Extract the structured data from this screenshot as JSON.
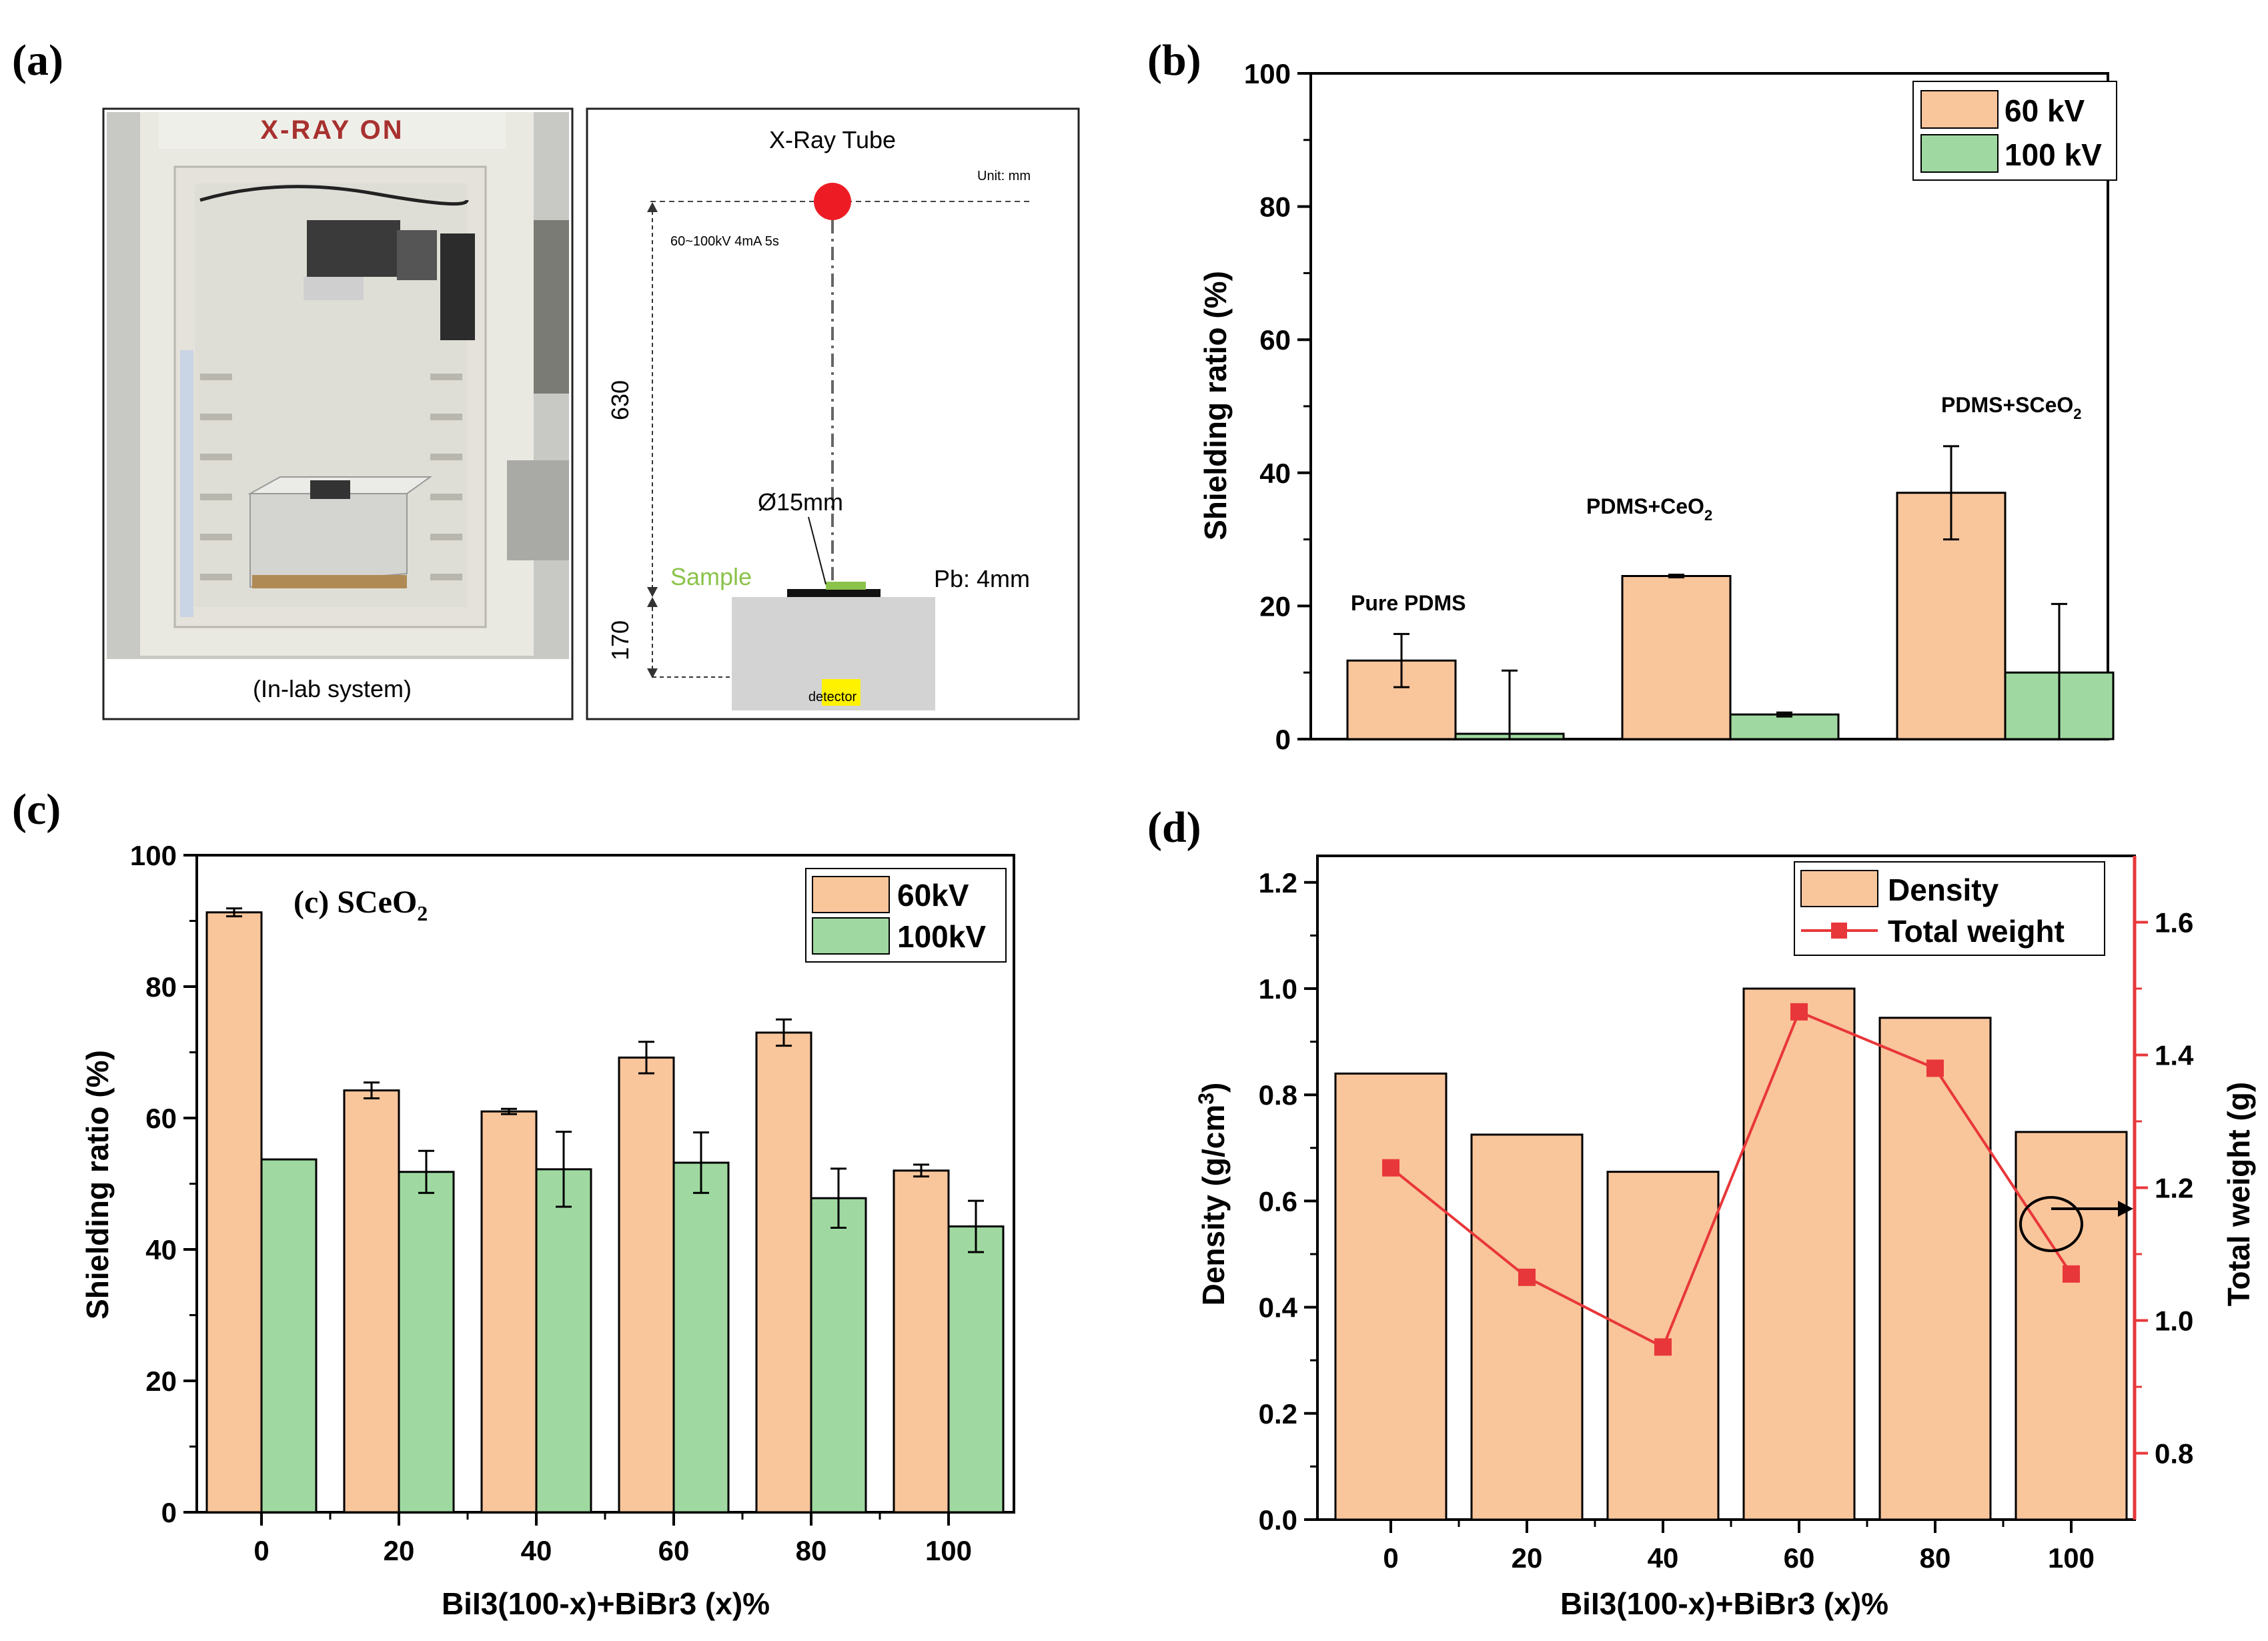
{
  "colors": {
    "orange": "#F9C59B",
    "green": "#9FD9A1",
    "red": "#E8373A",
    "laser": "#ED1C24",
    "sample": "#8BC34A",
    "detector": "#FFF200",
    "gray": "#D3D3D3"
  },
  "panel_a": {
    "label": "(a)",
    "photo_sign": "X-RAY ON",
    "photo_caption": "(In-lab system)",
    "tube_label": "X-Ray Tube",
    "unit": "Unit: mm",
    "source_params": "60~100kV 4mA 5s",
    "dist_top": "630",
    "dist_bottom": "170",
    "diameter": "Ø15mm",
    "sample": "Sample",
    "shield": "Pb: 4mm",
    "detector": "detector"
  },
  "chart_data": [
    {
      "id": "b",
      "label": "(b)",
      "type": "bar",
      "title": "",
      "ylabel": "Shielding ratio (%)",
      "ylim": [
        0,
        100
      ],
      "yticks": [
        0,
        20,
        40,
        60,
        80,
        100
      ],
      "categories": [
        "Pure PDMS",
        "PDMS+CeO2",
        "PDMS+SCeO2"
      ],
      "category_labels": [
        {
          "main": "Pure PDMS",
          "sub": ""
        },
        {
          "main": "PDMS+CeO",
          "sub": "2"
        },
        {
          "main": "PDMS+SCeO",
          "sub": "2"
        }
      ],
      "series": [
        {
          "name": "60 kV",
          "color": "#F9C59B",
          "values": [
            11.8,
            24.5,
            37.0
          ],
          "errors": [
            4.0,
            0.2,
            7.0
          ]
        },
        {
          "name": "100 kV",
          "color": "#9FD9A1",
          "values": [
            0.8,
            3.7,
            10.0
          ],
          "errors": [
            9.5,
            0.3,
            10.3
          ]
        }
      ],
      "legend_position": "top-right"
    },
    {
      "id": "c",
      "label": "(c)",
      "type": "bar",
      "annotation": {
        "main": "(c) SCeO",
        "sub": "2"
      },
      "xlabel": "BiI3(100-x)+BiBr3 (x)%",
      "ylabel": "Shielding ratio (%)",
      "ylim": [
        0,
        100
      ],
      "yticks": [
        0,
        20,
        40,
        60,
        80,
        100
      ],
      "categories": [
        "0",
        "20",
        "40",
        "60",
        "80",
        "100"
      ],
      "series": [
        {
          "name": "60kV",
          "color": "#F9C59B",
          "values": [
            91.3,
            64.2,
            61.0,
            69.2,
            73.0,
            52.0
          ],
          "errors": [
            0.6,
            1.2,
            0.4,
            2.4,
            2.0,
            0.9
          ]
        },
        {
          "name": "100kV",
          "color": "#9FD9A1",
          "values": [
            53.7,
            51.8,
            52.2,
            53.2,
            47.8,
            43.5
          ],
          "errors": [
            0.0,
            3.2,
            5.7,
            4.6,
            4.5,
            3.9
          ]
        }
      ],
      "legend_position": "top-right"
    },
    {
      "id": "d",
      "label": "(d)",
      "type": "bar+line",
      "xlabel": "BiI3(100-x)+BiBr3 (x)%",
      "ylabel_left": "Density (g/cm3)",
      "ylabel_left_main": "Density (g/cm",
      "ylabel_left_sup": "3",
      "ylabel_left_end": ")",
      "ylabel_right": "Total weight (g)",
      "ylim_left": [
        0,
        1.25
      ],
      "yticks_left": [
        "0.0",
        "0.2",
        "0.4",
        "0.6",
        "0.8",
        "1.0",
        "1.2"
      ],
      "ylim_right": [
        0.7,
        1.7
      ],
      "yticks_right": [
        "0.8",
        "1.0",
        "1.2",
        "1.4",
        "1.6"
      ],
      "categories": [
        "0",
        "20",
        "40",
        "60",
        "80",
        "100"
      ],
      "series": [
        {
          "name": "Density",
          "type": "bar",
          "color": "#F9C59B",
          "values": [
            0.84,
            0.725,
            0.655,
            1.0,
            0.945,
            0.73
          ]
        },
        {
          "name": "Total weight",
          "type": "line",
          "color": "#E8373A",
          "axis": "right",
          "values": [
            1.23,
            1.065,
            0.96,
            1.465,
            1.38,
            1.07
          ]
        }
      ],
      "legend_position": "top-right"
    }
  ]
}
